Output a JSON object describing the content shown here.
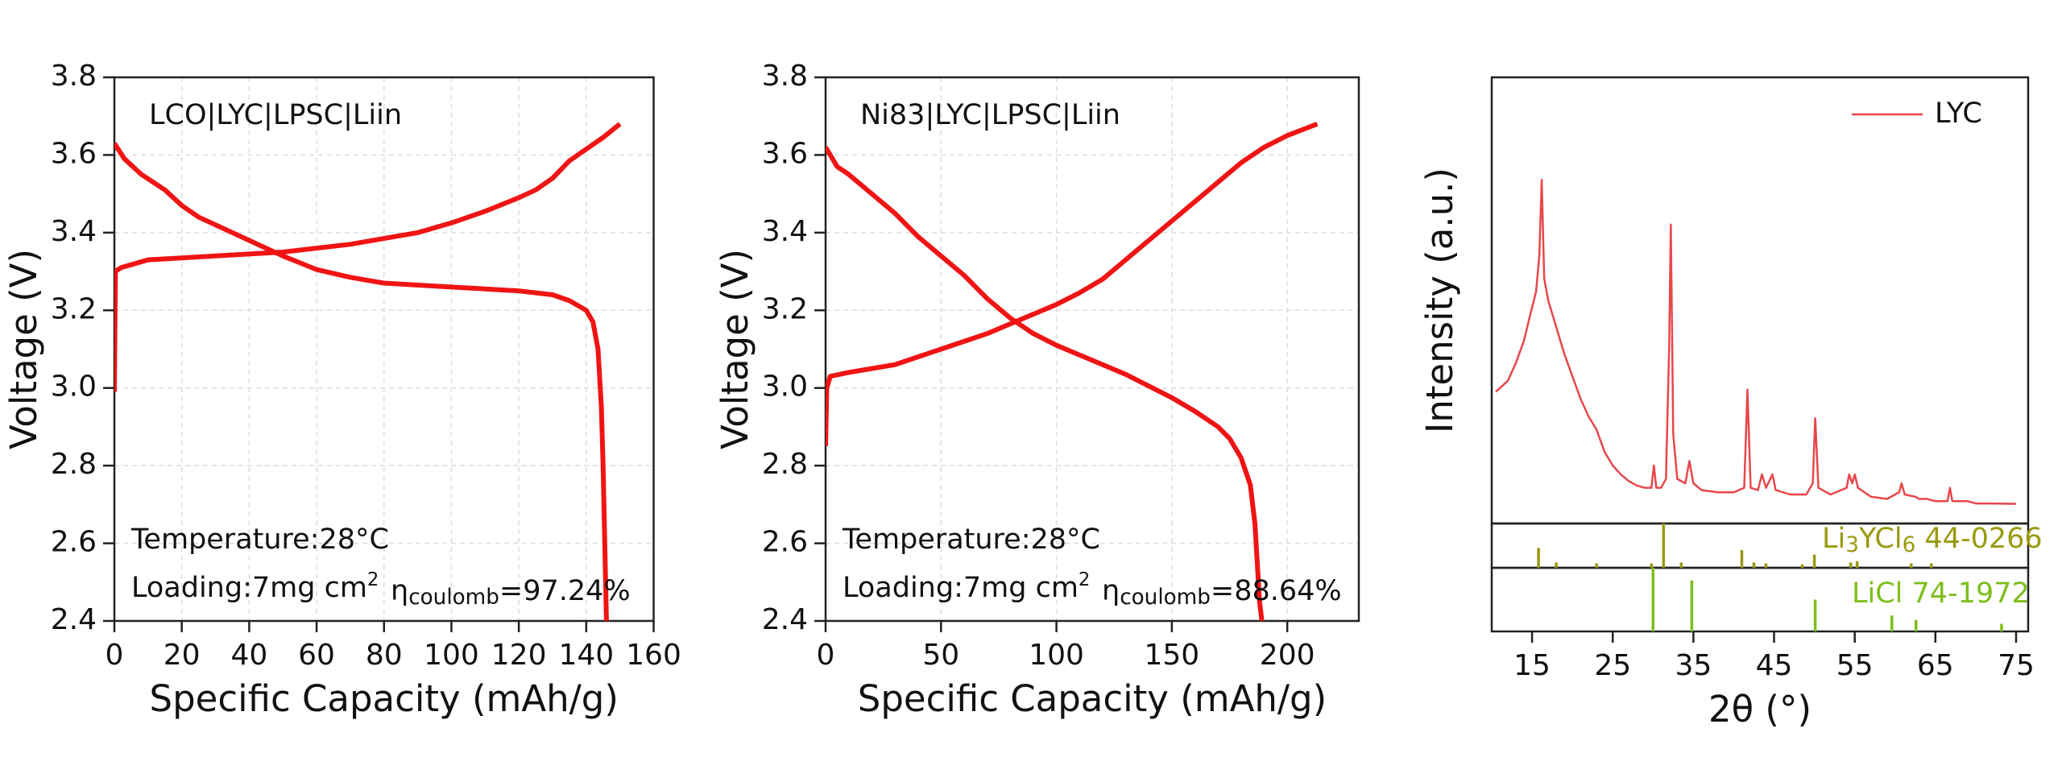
{
  "chart_data": [
    {
      "type": "line",
      "title": "LCO|LYC|LPSC|Liin",
      "x_label": "Specific Capacity (mAh/g)",
      "y_label": "Voltage (V)",
      "xlim": [
        0,
        160
      ],
      "ylim": [
        2.4,
        3.8
      ],
      "xticks": [
        0,
        20,
        40,
        60,
        80,
        100,
        120,
        140,
        160
      ],
      "yticks": [
        2.4,
        2.6,
        2.8,
        {
          "value": 3,
          "label": "3.0"
        },
        3.2,
        3.4,
        3.6,
        3.8
      ],
      "grid": true,
      "series": [
        {
          "color": "#f01414",
          "x": [
            0,
            0.3,
            2,
            10,
            20,
            30,
            40,
            50,
            60,
            70,
            80,
            90,
            100,
            110,
            120,
            125,
            130,
            135,
            140,
            145,
            150
          ],
          "values": [
            2.99,
            3.3,
            3.31,
            3.33,
            3.335,
            3.34,
            3.345,
            3.35,
            3.36,
            3.37,
            3.385,
            3.4,
            3.425,
            3.455,
            3.49,
            3.51,
            3.54,
            3.585,
            3.615,
            3.645,
            3.68
          ]
        },
        {
          "color": "#f01414",
          "x": [
            0,
            3,
            8,
            15,
            20,
            25,
            30,
            40,
            50,
            60,
            70,
            80,
            90,
            100,
            110,
            120,
            130,
            135,
            140,
            142,
            143.5,
            144.5,
            145,
            145.5,
            146
          ],
          "values": [
            3.63,
            3.59,
            3.55,
            3.51,
            3.47,
            3.44,
            3.42,
            3.38,
            3.34,
            3.305,
            3.285,
            3.27,
            3.265,
            3.26,
            3.255,
            3.25,
            3.24,
            3.225,
            3.2,
            3.17,
            3.1,
            2.95,
            2.8,
            2.6,
            2.4
          ]
        }
      ],
      "annotations": [
        {
          "segments": [
            {
              "text": "Temperature:28°C"
            }
          ]
        },
        {
          "segments": [
            {
              "text": "Loading:7mg cm"
            },
            {
              "sup": "2"
            }
          ]
        },
        {
          "segments": [
            {
              "text": "η"
            },
            {
              "sub": "coulomb"
            },
            {
              "text": "=97.24%"
            }
          ]
        }
      ]
    },
    {
      "type": "line",
      "title": "Ni83|LYC|LPSC|Liin",
      "x_label": "Specific Capacity (mAh/g)",
      "y_label": "Voltage (V)",
      "xlim": [
        0,
        231
      ],
      "ylim": [
        2.4,
        3.8
      ],
      "xticks": [
        0,
        50,
        100,
        150,
        200
      ],
      "yticks": [
        2.4,
        2.6,
        2.8,
        {
          "value": 3,
          "label": "3.0"
        },
        3.2,
        3.4,
        3.6,
        3.8
      ],
      "grid": true,
      "series": [
        {
          "color": "#f01414",
          "x": [
            0,
            0.5,
            2,
            10,
            20,
            30,
            40,
            50,
            60,
            70,
            80,
            90,
            100,
            110,
            120,
            130,
            140,
            150,
            160,
            170,
            180,
            190,
            200,
            213
          ],
          "values": [
            2.85,
            3.0,
            3.03,
            3.04,
            3.05,
            3.06,
            3.08,
            3.1,
            3.12,
            3.14,
            3.165,
            3.19,
            3.215,
            3.245,
            3.28,
            3.33,
            3.38,
            3.43,
            3.48,
            3.53,
            3.58,
            3.62,
            3.65,
            3.68
          ]
        },
        {
          "color": "#f01414",
          "x": [
            0,
            5,
            10,
            20,
            30,
            40,
            50,
            60,
            70,
            80,
            90,
            100,
            110,
            120,
            130,
            140,
            150,
            160,
            170,
            175,
            180,
            184,
            186,
            187,
            188,
            189
          ],
          "values": [
            3.62,
            3.57,
            3.55,
            3.5,
            3.45,
            3.39,
            3.34,
            3.29,
            3.23,
            3.18,
            3.14,
            3.11,
            3.085,
            3.06,
            3.035,
            3.005,
            2.975,
            2.94,
            2.9,
            2.87,
            2.82,
            2.75,
            2.65,
            2.55,
            2.45,
            2.4
          ]
        }
      ],
      "annotations": [
        {
          "segments": [
            {
              "text": "Temperature:28°C"
            }
          ]
        },
        {
          "segments": [
            {
              "text": "Loading:7mg cm"
            },
            {
              "sup": "2"
            }
          ]
        },
        {
          "segments": [
            {
              "text": "η"
            },
            {
              "sub": "coulomb"
            },
            {
              "text": "=88.64%"
            }
          ]
        }
      ]
    },
    {
      "type": "line",
      "x_label": "2θ (°)",
      "y_label": "Intensity (a.u.)",
      "xlim": [
        10,
        76.5
      ],
      "ylim": [
        0,
        100
      ],
      "xticks": [
        15,
        25,
        35,
        45,
        55,
        65,
        75
      ],
      "grid": false,
      "legend": "top-right",
      "series": [
        {
          "name": "LYC",
          "color": "#e8474a",
          "x": [
            10.5,
            12,
            13,
            14,
            14.8,
            15.5,
            15.9,
            16.2,
            16.5,
            17,
            18,
            19,
            20,
            21,
            22,
            23,
            24,
            25,
            26,
            27,
            28,
            29,
            29.8,
            30.1,
            30.4,
            31,
            31.6,
            32,
            32.2,
            32.5,
            33,
            34,
            34.5,
            35,
            36,
            38,
            40,
            41.3,
            41.7,
            42.1,
            43,
            43.5,
            44,
            44.8,
            45.2,
            47,
            49,
            49.8,
            50.1,
            50.5,
            52,
            54,
            54.3,
            54.7,
            55,
            55.4,
            57,
            59,
            60.5,
            60.8,
            61.2,
            62.5,
            63,
            64,
            65,
            66.5,
            66.8,
            67.1,
            69,
            70,
            72,
            75
          ],
          "values": [
            29.5,
            32,
            36,
            41,
            47,
            52,
            60,
            77,
            55,
            50,
            44,
            38,
            33,
            28,
            24,
            21,
            16,
            13,
            11,
            9.5,
            8.5,
            8,
            8,
            13,
            8,
            8,
            10,
            40,
            67,
            20,
            10,
            9,
            14,
            9,
            7.5,
            7,
            7,
            8,
            30,
            8,
            7.5,
            11,
            8,
            11,
            7.5,
            6.5,
            6.5,
            9,
            23.6,
            8,
            6.5,
            8,
            11,
            9,
            11,
            8,
            6,
            5.5,
            7,
            9,
            6.5,
            6,
            5.5,
            5.5,
            5,
            5,
            8,
            5,
            5,
            4.5,
            4.5,
            4.4
          ]
        }
      ],
      "references": [
        {
          "color": "#9a9a10",
          "label": {
            "segments": [
              {
                "text": "Li"
              },
              {
                "sub": "3"
              },
              {
                "text": "YCl"
              },
              {
                "sub": "6"
              },
              {
                "text": " 44-0266"
              }
            ]
          },
          "ylim": [
            0,
            100
          ],
          "x": [
            15.8,
            18,
            23,
            29.8,
            31.3,
            33.5,
            41,
            42.5,
            44,
            48.5,
            50,
            54.5,
            55.3,
            62,
            64.5
          ],
          "values": [
            45,
            12,
            10,
            10,
            100,
            12,
            40,
            12,
            10,
            8,
            30,
            12,
            15,
            10,
            10
          ]
        },
        {
          "color": "#7cbf1c",
          "label": {
            "segments": [
              {
                "text": "LiCl  74-1972"
              }
            ]
          },
          "ylim": [
            0,
            100
          ],
          "x": [
            30,
            34.8,
            50.1,
            59.6,
            62.6,
            73.2
          ],
          "values": [
            100,
            80,
            50,
            25,
            18,
            12
          ]
        }
      ]
    }
  ]
}
